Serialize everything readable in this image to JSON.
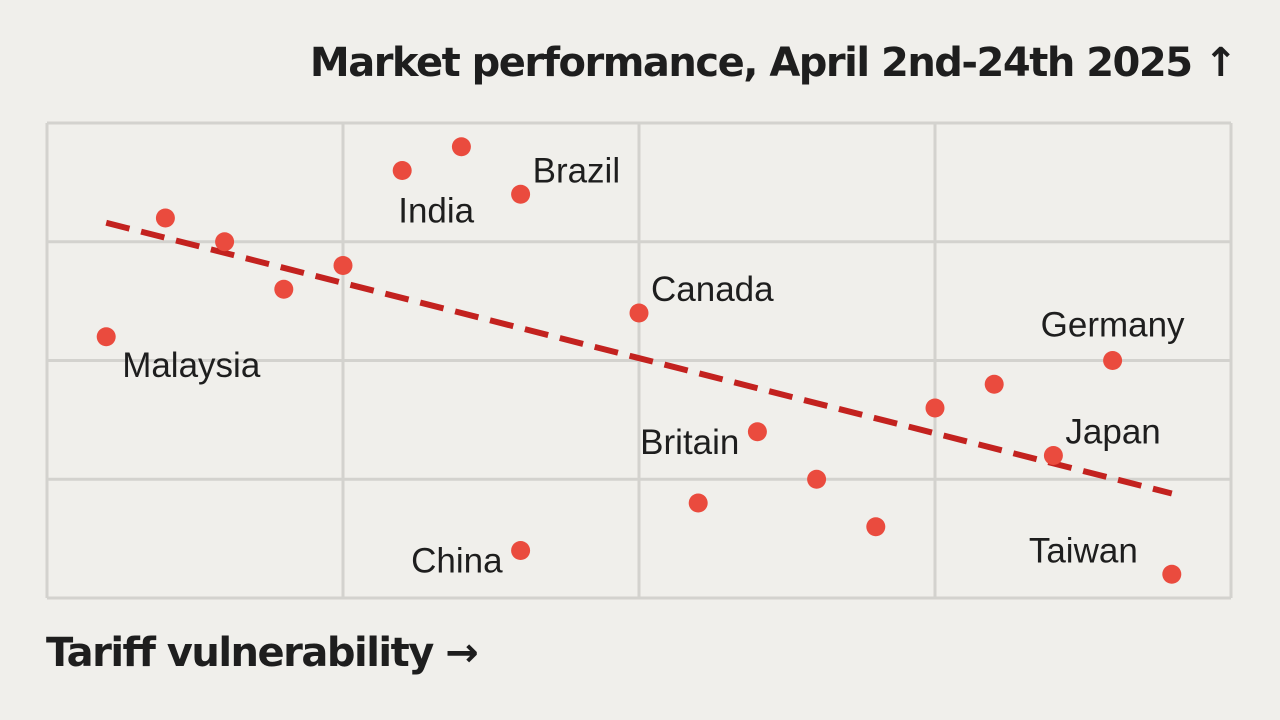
{
  "chart_data": {
    "type": "scatter",
    "title": "",
    "ylabel": "Market performance, April 2nd-24th 2025",
    "ylabel_arrow": "↑",
    "xlabel": "Tariff vulnerability",
    "xlabel_arrow": "→",
    "xlim": [
      0,
      20
    ],
    "ylim": [
      0,
      20
    ],
    "grid": true,
    "tick_labels": false,
    "point_color": "#ea4b3e",
    "trend_color": "#c3221f",
    "points": [
      {
        "x": 1.0,
        "y": 11.0,
        "label": "Malaysia",
        "label_pos": "below-right"
      },
      {
        "x": 2.0,
        "y": 16.0,
        "label": ""
      },
      {
        "x": 3.0,
        "y": 15.0,
        "label": ""
      },
      {
        "x": 4.0,
        "y": 13.0,
        "label": ""
      },
      {
        "x": 5.0,
        "y": 14.0,
        "label": ""
      },
      {
        "x": 6.0,
        "y": 18.0,
        "label": "India",
        "label_pos": "below"
      },
      {
        "x": 7.0,
        "y": 19.0,
        "label": ""
      },
      {
        "x": 8.0,
        "y": 17.0,
        "label": "Brazil",
        "label_pos": "above-right"
      },
      {
        "x": 8.0,
        "y": 2.0,
        "label": "China",
        "label_pos": "left"
      },
      {
        "x": 10.0,
        "y": 12.0,
        "label": "Canada",
        "label_pos": "above-right"
      },
      {
        "x": 11.0,
        "y": 4.0,
        "label": ""
      },
      {
        "x": 12.0,
        "y": 7.0,
        "label": "Britain",
        "label_pos": "left"
      },
      {
        "x": 13.0,
        "y": 5.0,
        "label": ""
      },
      {
        "x": 14.0,
        "y": 3.0,
        "label": ""
      },
      {
        "x": 15.0,
        "y": 8.0,
        "label": ""
      },
      {
        "x": 16.0,
        "y": 9.0,
        "label": ""
      },
      {
        "x": 17.0,
        "y": 6.0,
        "label": "Japan",
        "label_pos": "above-right"
      },
      {
        "x": 18.0,
        "y": 10.0,
        "label": "Germany",
        "label_pos": "above"
      },
      {
        "x": 19.0,
        "y": 1.0,
        "label": "Taiwan",
        "label_pos": "above-left"
      }
    ],
    "trendline": {
      "x": [
        1.0,
        19.0
      ],
      "y": [
        15.8,
        4.4
      ],
      "style": "dashed"
    }
  }
}
